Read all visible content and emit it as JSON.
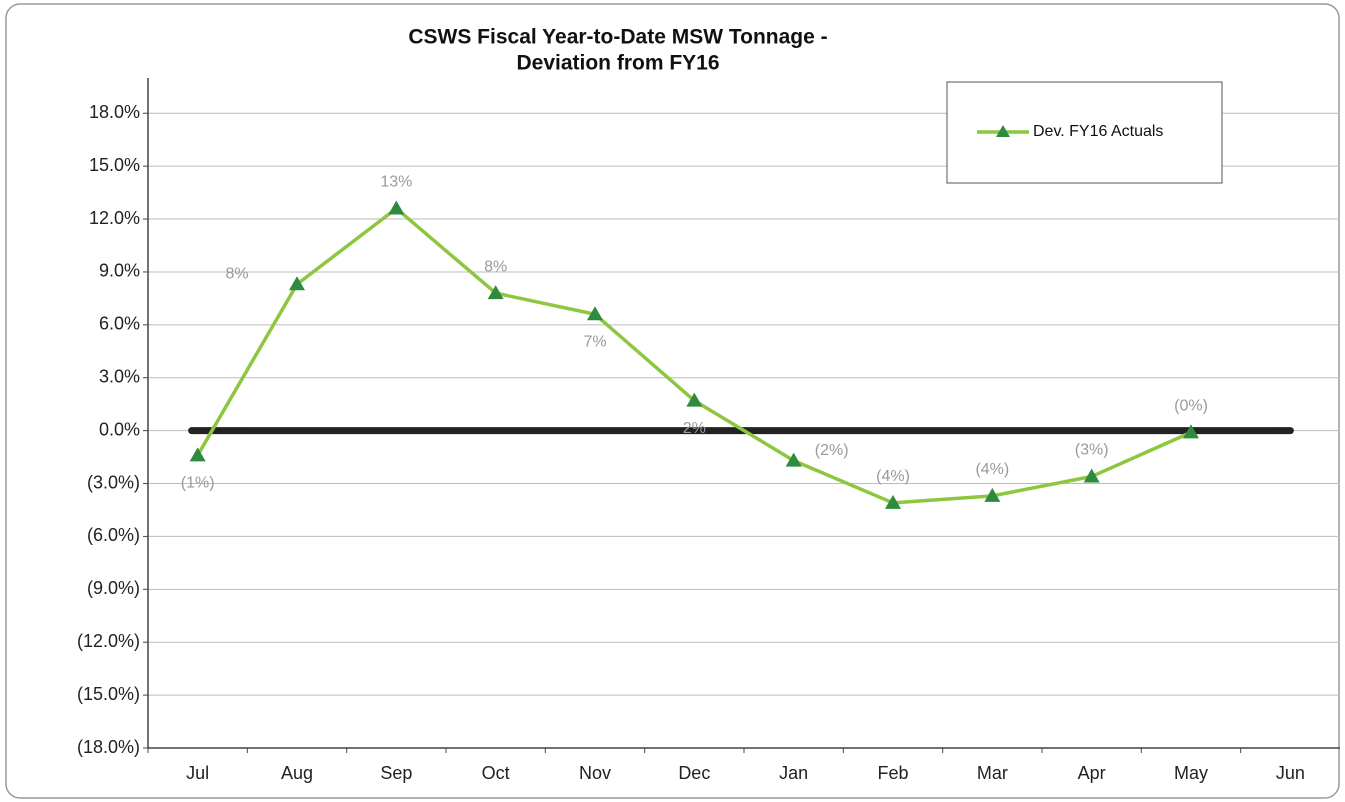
{
  "chart_data": {
    "type": "line",
    "title": [
      "CSWS Fiscal Year-to-Date MSW Tonnage -",
      "Deviation from FY16"
    ],
    "categories": [
      "Jul",
      "Aug",
      "Sep",
      "Oct",
      "Nov",
      "Dec",
      "Jan",
      "Feb",
      "Mar",
      "Apr",
      "May",
      "Jun"
    ],
    "series": [
      {
        "name": "Dev. FY16 Actuals",
        "color": "#8dc63f",
        "marker_color": "#2e8b3e",
        "values": [
          -1.4,
          8.3,
          12.6,
          7.8,
          6.6,
          1.7,
          -1.7,
          -4.1,
          -3.7,
          -2.6,
          -0.1,
          null
        ],
        "value_labels": [
          "(1%)",
          "8%",
          "13%",
          "8%",
          "7%",
          "2%",
          "(2%)",
          "(4%)",
          "(4%)",
          "(3%)",
          "(0%)",
          null
        ]
      }
    ],
    "baseline": 0,
    "ylim": [
      -18,
      20
    ],
    "yticks": [
      {
        "value": -18,
        "label": "(18.0%)"
      },
      {
        "value": -15,
        "label": "(15.0%)"
      },
      {
        "value": -12,
        "label": "(12.0%)"
      },
      {
        "value": -9,
        "label": "(9.0%)"
      },
      {
        "value": -6,
        "label": "(6.0%)"
      },
      {
        "value": -3,
        "label": "(3.0%)"
      },
      {
        "value": 0,
        "label": "0.0%"
      },
      {
        "value": 3,
        "label": "3.0%"
      },
      {
        "value": 6,
        "label": "6.0%"
      },
      {
        "value": 9,
        "label": "9.0%"
      },
      {
        "value": 12,
        "label": "12.0%"
      },
      {
        "value": 15,
        "label": "15.0%"
      },
      {
        "value": 18,
        "label": "18.0%"
      }
    ],
    "grid": true,
    "legend": "top-right"
  }
}
